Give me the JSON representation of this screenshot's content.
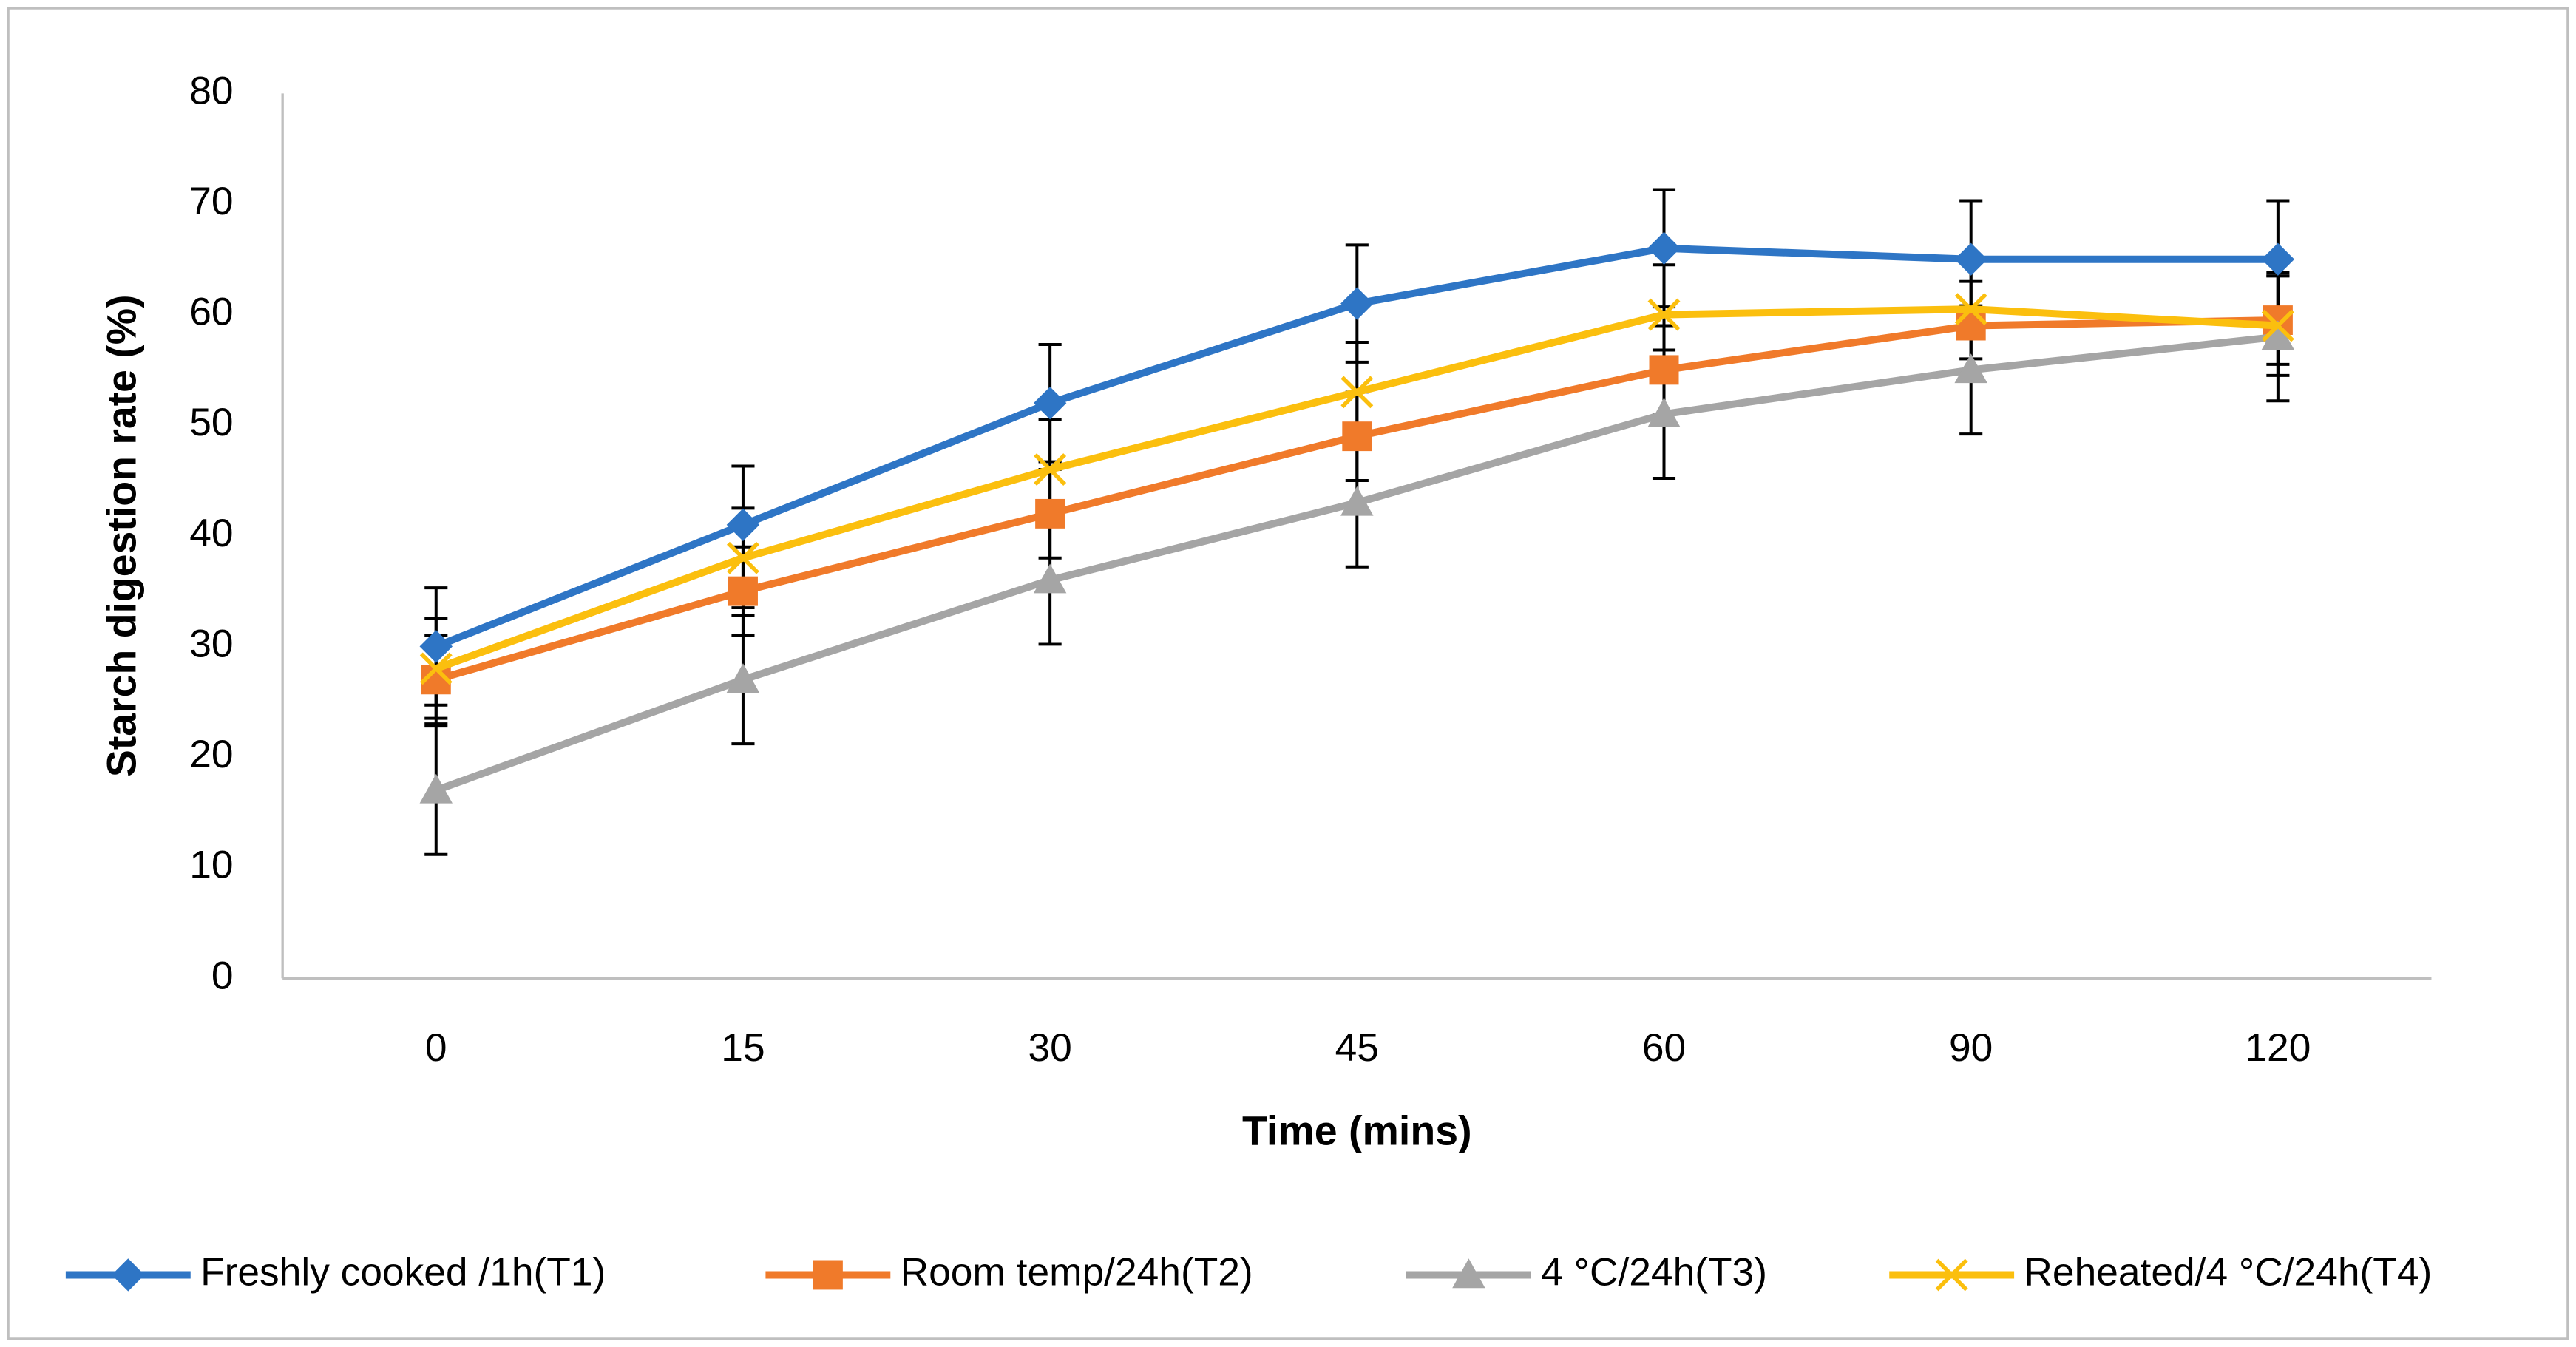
{
  "chart_data": {
    "type": "line",
    "x_label": "Time (mins)",
    "y_label": "Starch digestion rate (%)",
    "categories": [
      "0",
      "15",
      "30",
      "45",
      "60",
      "90",
      "120"
    ],
    "series": [
      {
        "name": "Freshly cooked /1h(T1)",
        "color": "#2e75c5",
        "marker": "diamond",
        "values": [
          30,
          41,
          52,
          61,
          66,
          65,
          65
        ],
        "errors": [
          5.3,
          5.3,
          5.3,
          5.3,
          5.3,
          5.3,
          5.3
        ]
      },
      {
        "name": "Room temp/24h(T2)",
        "color": "#f07a2a",
        "marker": "square",
        "values": [
          27,
          35,
          42,
          49,
          55,
          59,
          59.5
        ],
        "errors": [
          4,
          4,
          4,
          4,
          4,
          4,
          4
        ]
      },
      {
        "name": "4 °C/24h(T3)",
        "color": "#a5a5a5",
        "marker": "triangle",
        "values": [
          17,
          27,
          36,
          43,
          51,
          55,
          58
        ],
        "errors": [
          5.8,
          5.8,
          5.8,
          5.8,
          5.8,
          5.8,
          5.8
        ]
      },
      {
        "name": "Reheated/4 °C/24h(T4)",
        "color": "#fbbf0e",
        "marker": "x",
        "values": [
          28,
          38,
          46,
          53,
          60,
          60.5,
          59
        ],
        "errors": [
          4.5,
          4.5,
          4.5,
          4.5,
          4.5,
          4.5,
          4.5
        ]
      }
    ],
    "ylim": [
      0,
      80
    ],
    "yticks": [
      0,
      10,
      20,
      30,
      40,
      50,
      60,
      70,
      80
    ],
    "grid": false,
    "legend": "bottom"
  }
}
